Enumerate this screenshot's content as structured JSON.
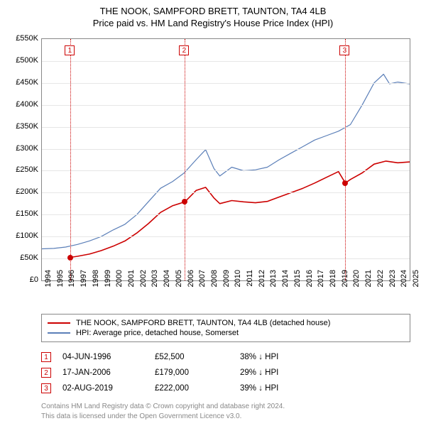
{
  "title_line1": "THE NOOK, SAMPFORD BRETT, TAUNTON, TA4 4LB",
  "title_line2": "Price paid vs. HM Land Registry's House Price Index (HPI)",
  "chart": {
    "type": "line",
    "x_years": [
      1994,
      1995,
      1996,
      1997,
      1998,
      1999,
      2000,
      2001,
      2002,
      2003,
      2004,
      2005,
      2006,
      2007,
      2008,
      2009,
      2010,
      2011,
      2012,
      2013,
      2014,
      2015,
      2016,
      2017,
      2018,
      2019,
      2020,
      2021,
      2022,
      2023,
      2024,
      2025
    ],
    "y_ticks": [
      0,
      50,
      100,
      150,
      200,
      250,
      300,
      350,
      400,
      450,
      500,
      550
    ],
    "y_tick_labels": [
      "£0",
      "£50K",
      "£100K",
      "£150K",
      "£200K",
      "£250K",
      "£300K",
      "£350K",
      "£400K",
      "£450K",
      "£500K",
      "£550K"
    ],
    "ymax": 550,
    "background_color": "#ffffff",
    "grid_color": "#e6e6e6",
    "border_color": "#888888",
    "series": {
      "price_paid": {
        "label": "THE NOOK, SAMPFORD BRETT, TAUNTON, TA4 4LB (detached house)",
        "color": "#cc0000",
        "stroke_width": 1.6,
        "points": [
          [
            1996.42,
            52.5
          ],
          [
            1997,
            55
          ],
          [
            1998,
            60
          ],
          [
            1999,
            68
          ],
          [
            2000,
            78
          ],
          [
            2001,
            90
          ],
          [
            2002,
            108
          ],
          [
            2003,
            130
          ],
          [
            2004,
            155
          ],
          [
            2005,
            170
          ],
          [
            2006.05,
            179
          ],
          [
            2007,
            205
          ],
          [
            2007.8,
            212
          ],
          [
            2008.5,
            188
          ],
          [
            2009,
            175
          ],
          [
            2010,
            182
          ],
          [
            2011,
            179
          ],
          [
            2012,
            177
          ],
          [
            2013,
            180
          ],
          [
            2014,
            190
          ],
          [
            2015,
            200
          ],
          [
            2016,
            210
          ],
          [
            2017,
            222
          ],
          [
            2018,
            235
          ],
          [
            2019,
            248
          ],
          [
            2019.58,
            222
          ],
          [
            2020,
            230
          ],
          [
            2021,
            245
          ],
          [
            2022,
            265
          ],
          [
            2023,
            272
          ],
          [
            2024,
            268
          ],
          [
            2025,
            270
          ]
        ]
      },
      "hpi": {
        "label": "HPI: Average price, detached house, Somerset",
        "color": "#5b7fb8",
        "stroke_width": 1.2,
        "points": [
          [
            1994,
            72
          ],
          [
            1995,
            73
          ],
          [
            1996,
            76
          ],
          [
            1997,
            82
          ],
          [
            1998,
            90
          ],
          [
            1999,
            100
          ],
          [
            2000,
            115
          ],
          [
            2001,
            128
          ],
          [
            2002,
            150
          ],
          [
            2003,
            180
          ],
          [
            2004,
            210
          ],
          [
            2005,
            225
          ],
          [
            2006,
            245
          ],
          [
            2007,
            275
          ],
          [
            2007.8,
            298
          ],
          [
            2008.5,
            255
          ],
          [
            2009,
            238
          ],
          [
            2010,
            258
          ],
          [
            2011,
            250
          ],
          [
            2012,
            252
          ],
          [
            2013,
            258
          ],
          [
            2014,
            275
          ],
          [
            2015,
            290
          ],
          [
            2016,
            305
          ],
          [
            2017,
            320
          ],
          [
            2018,
            330
          ],
          [
            2019,
            340
          ],
          [
            2020,
            355
          ],
          [
            2021,
            400
          ],
          [
            2022,
            450
          ],
          [
            2022.8,
            470
          ],
          [
            2023.3,
            448
          ],
          [
            2024,
            452
          ],
          [
            2025,
            448
          ]
        ]
      }
    },
    "markers": [
      {
        "n": "1",
        "year": 1996.42,
        "value": 52.5
      },
      {
        "n": "2",
        "year": 2006.05,
        "value": 179
      },
      {
        "n": "3",
        "year": 2019.58,
        "value": 222
      }
    ]
  },
  "legend": [
    {
      "color": "#cc0000",
      "text": "THE NOOK, SAMPFORD BRETT, TAUNTON, TA4 4LB (detached house)"
    },
    {
      "color": "#5b7fb8",
      "text": "HPI: Average price, detached house, Somerset"
    }
  ],
  "sales": [
    {
      "n": "1",
      "date": "04-JUN-1996",
      "price": "£52,500",
      "delta": "38% ↓ HPI"
    },
    {
      "n": "2",
      "date": "17-JAN-2006",
      "price": "£179,000",
      "delta": "29% ↓ HPI"
    },
    {
      "n": "3",
      "date": "02-AUG-2019",
      "price": "£222,000",
      "delta": "39% ↓ HPI"
    }
  ],
  "footer_line1": "Contains HM Land Registry data © Crown copyright and database right 2024.",
  "footer_line2": "This data is licensed under the Open Government Licence v3.0."
}
